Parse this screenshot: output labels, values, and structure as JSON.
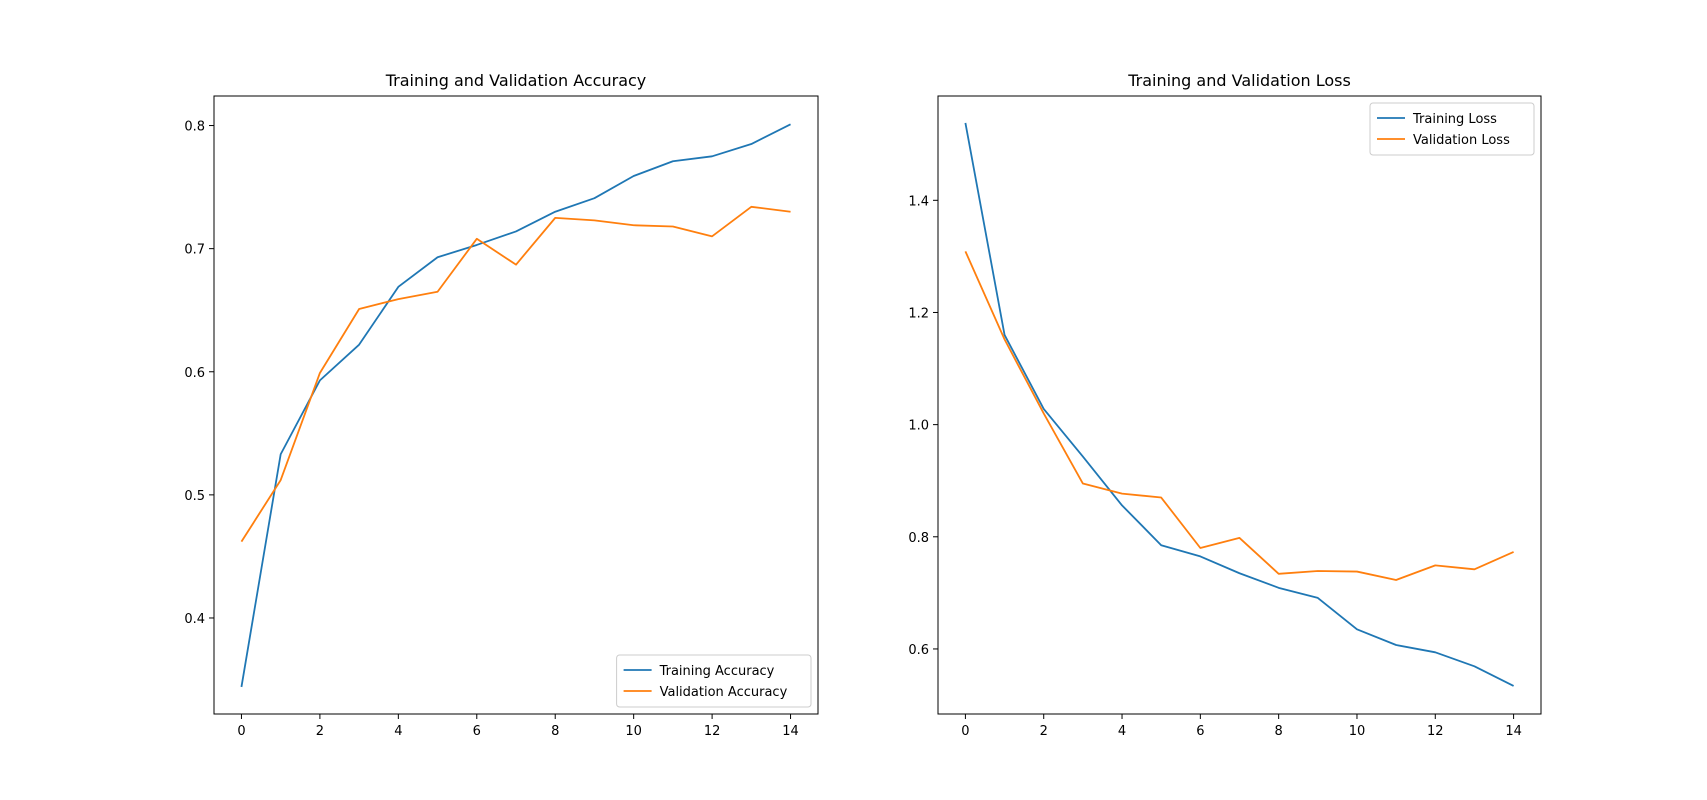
{
  "chart_data": [
    {
      "type": "line",
      "title": "Training and Validation Accuracy",
      "xlabel": "",
      "ylabel": "",
      "x": [
        0,
        1,
        2,
        3,
        4,
        5,
        6,
        7,
        8,
        9,
        10,
        11,
        12,
        13,
        14
      ],
      "xlim": [
        -0.7,
        14.7
      ],
      "ylim": [
        0.322,
        0.824
      ],
      "xticks": [
        0,
        2,
        4,
        6,
        8,
        10,
        12,
        14
      ],
      "yticks": [
        0.4,
        0.5,
        0.6,
        0.7,
        0.8
      ],
      "xtick_labels": [
        "0",
        "2",
        "4",
        "6",
        "8",
        "10",
        "12",
        "14"
      ],
      "ytick_labels": [
        "0.4",
        "0.5",
        "0.6",
        "0.7",
        "0.8"
      ],
      "grid": false,
      "legend_position": "lower-right",
      "series": [
        {
          "name": "Training Accuracy",
          "color": "#1f77b4",
          "values": [
            0.344,
            0.533,
            0.593,
            0.622,
            0.669,
            0.693,
            0.703,
            0.714,
            0.73,
            0.741,
            0.759,
            0.771,
            0.775,
            0.785,
            0.801
          ]
        },
        {
          "name": "Validation Accuracy",
          "color": "#ff7f0e",
          "values": [
            0.462,
            0.512,
            0.599,
            0.651,
            0.659,
            0.665,
            0.708,
            0.687,
            0.725,
            0.723,
            0.719,
            0.718,
            0.71,
            0.734,
            0.73
          ]
        }
      ]
    },
    {
      "type": "line",
      "title": "Training and Validation Loss",
      "xlabel": "",
      "ylabel": "",
      "x": [
        0,
        1,
        2,
        3,
        4,
        5,
        6,
        7,
        8,
        9,
        10,
        11,
        12,
        13,
        14
      ],
      "xlim": [
        -0.7,
        14.7
      ],
      "ylim": [
        0.484,
        1.586
      ],
      "xticks": [
        0,
        2,
        4,
        6,
        8,
        10,
        12,
        14
      ],
      "yticks": [
        0.6,
        0.8,
        1.0,
        1.2,
        1.4
      ],
      "xtick_labels": [
        "0",
        "2",
        "4",
        "6",
        "8",
        "10",
        "12",
        "14"
      ],
      "ytick_labels": [
        "0.6",
        "0.8",
        "1.0",
        "1.2",
        "1.4"
      ],
      "grid": false,
      "legend_position": "upper-right",
      "series": [
        {
          "name": "Training Loss",
          "color": "#1f77b4",
          "values": [
            1.538,
            1.16,
            1.028,
            0.943,
            0.856,
            0.785,
            0.765,
            0.735,
            0.709,
            0.691,
            0.635,
            0.607,
            0.594,
            0.569,
            0.534
          ]
        },
        {
          "name": "Validation Loss",
          "color": "#ff7f0e",
          "values": [
            1.309,
            1.152,
            1.02,
            0.895,
            0.877,
            0.87,
            0.78,
            0.798,
            0.734,
            0.739,
            0.738,
            0.723,
            0.749,
            0.742,
            0.773
          ]
        }
      ]
    }
  ]
}
